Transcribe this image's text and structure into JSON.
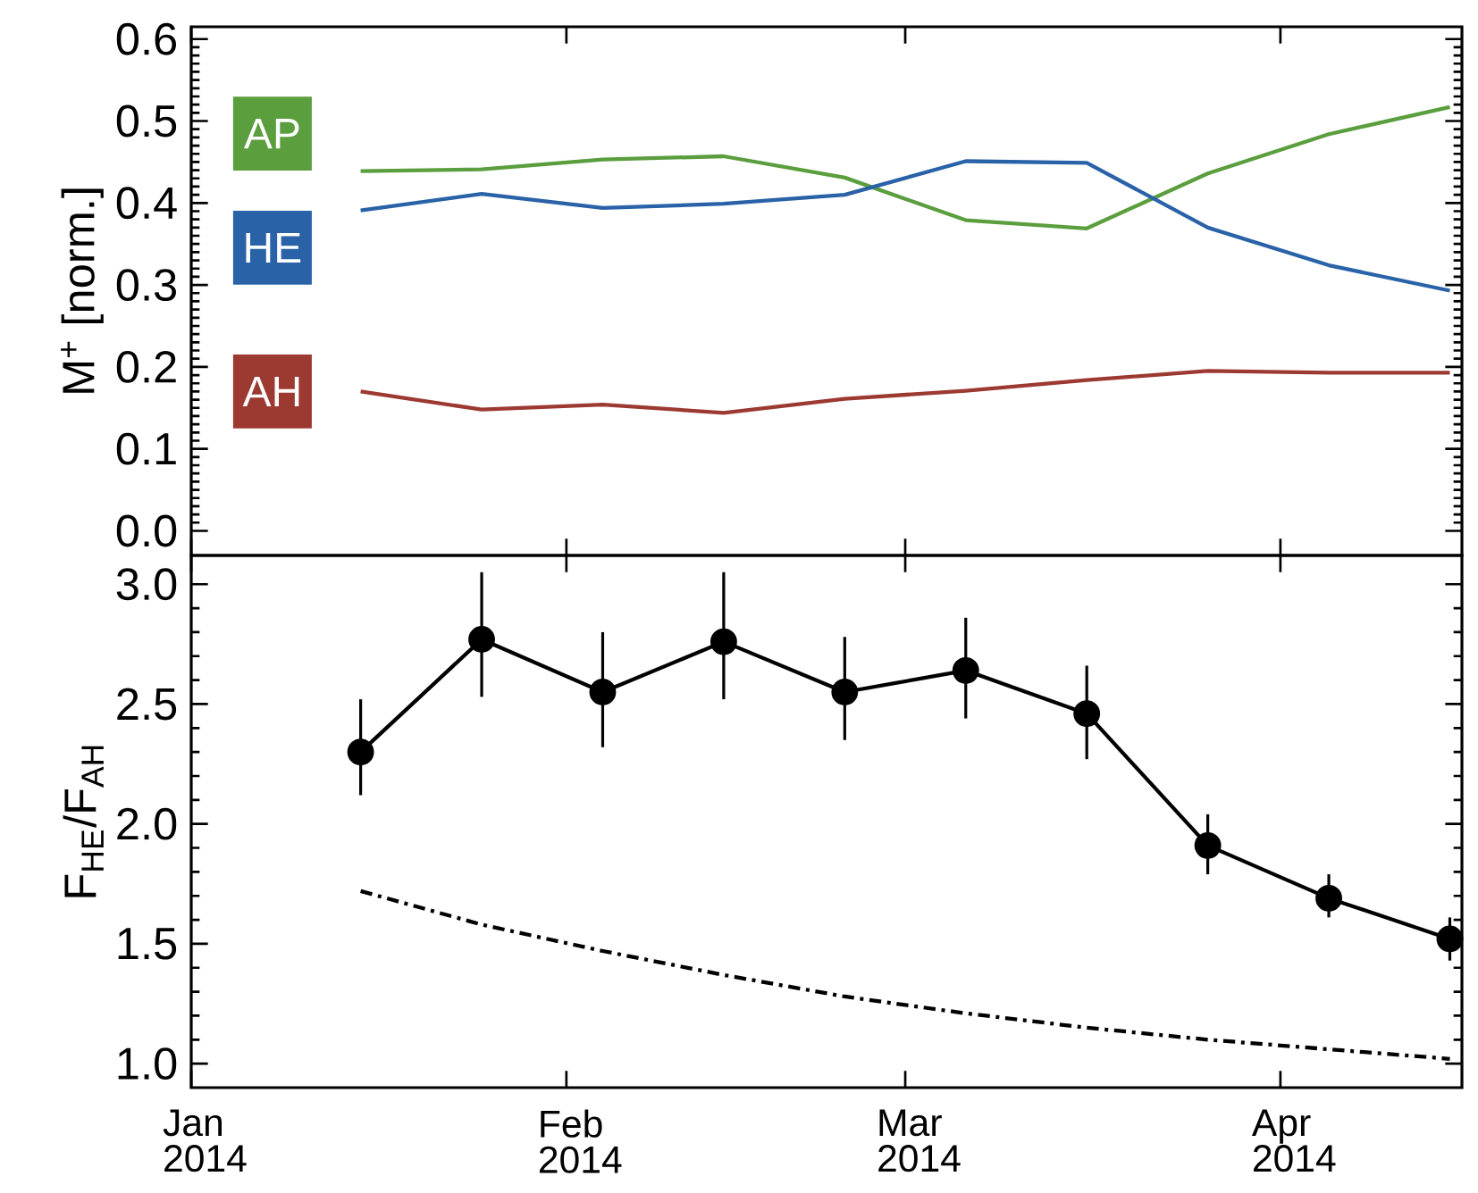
{
  "chart_data": [
    {
      "type": "line",
      "ylabel": "M$^{+}$ [norm.]",
      "xlim": [
        "2014-01-01",
        "2014-04-16"
      ],
      "xticks": [
        {
          "value": "2014-01-01",
          "label": null
        },
        {
          "value": "2014-02-01",
          "label": null
        },
        {
          "value": "2014-03-01",
          "label": null
        },
        {
          "value": "2014-04-01",
          "label": null
        }
      ],
      "ylim": [
        -0.03,
        0.615
      ],
      "yticks": [
        {
          "value": 0,
          "label": "0.0"
        },
        0.1,
        0.2,
        0.3,
        0.4,
        0.5,
        0.6
      ],
      "tick_labels": "y",
      "x": [
        "2014-01-15",
        "2014-01-25",
        "2014-02-04",
        "2014-02-14",
        "2014-02-24",
        "2014-03-06",
        "2014-03-16",
        "2014-03-26",
        "2014-04-05",
        "2014-04-15"
      ],
      "series": [
        {
          "name": "AP",
          "color": "#5a9e3e",
          "values": [
            0.439,
            0.441,
            0.453,
            0.457,
            0.431,
            0.379,
            0.369,
            0.436,
            0.484,
            0.517
          ]
        },
        {
          "name": "HE",
          "color": "#2a62a8",
          "values": [
            0.391,
            0.411,
            0.394,
            0.399,
            0.41,
            0.451,
            0.449,
            0.37,
            0.324,
            0.293
          ]
        },
        {
          "name": "AH",
          "color": "#9c3a32",
          "values": [
            0.17,
            0.148,
            0.154,
            0.144,
            0.161,
            0.171,
            0.184,
            0.195,
            0.193,
            0.193
          ]
        }
      ]
    },
    {
      "type": "line",
      "ylabel": "F$_{HE}$/F$_{AH}$",
      "xlim": [
        "2014-01-01",
        "2014-04-16"
      ],
      "xticks": [
        {
          "value": "2014-01-01",
          "label": "Jan 2014"
        },
        {
          "value": "2014-02-01",
          "label": "Feb 2014"
        },
        {
          "value": "2014-03-01",
          "label": "Mar 2014"
        },
        {
          "value": "2014-04-01",
          "label": "Apr 2014"
        }
      ],
      "ylim": [
        0.9,
        3.12
      ],
      "yticks": [
        {
          "value": 1,
          "label": "1.0"
        },
        1.5,
        {
          "value": 2,
          "label": "2.0"
        },
        2.5,
        {
          "value": 3,
          "label": "3.0"
        }
      ],
      "x": [
        "2014-01-15",
        "2014-01-25",
        "2014-02-04",
        "2014-02-14",
        "2014-02-24",
        "2014-03-06",
        "2014-03-16",
        "2014-03-26",
        "2014-04-05",
        "2014-04-15"
      ],
      "series": [
        {
          "color": "#000000",
          "marker": "circle",
          "values": [
            2.3,
            2.77,
            2.55,
            2.76,
            2.55,
            2.64,
            2.46,
            1.91,
            1.69,
            1.52
          ],
          "errors": [
            [
              2.12,
              2.52
            ],
            [
              2.53,
              3.05
            ],
            [
              2.32,
              2.8
            ],
            [
              2.52,
              3.05
            ],
            [
              2.35,
              2.78
            ],
            [
              2.44,
              2.86
            ],
            [
              2.27,
              2.66
            ],
            [
              1.79,
              2.04
            ],
            [
              1.61,
              1.79
            ],
            [
              1.43,
              1.61
            ]
          ]
        },
        {
          "color": "#000000",
          "line_style": "dashdot",
          "values": [
            1.72,
            1.58,
            1.47,
            1.37,
            1.28,
            1.21,
            1.15,
            1.1,
            1.06,
            1.02
          ]
        }
      ]
    }
  ]
}
